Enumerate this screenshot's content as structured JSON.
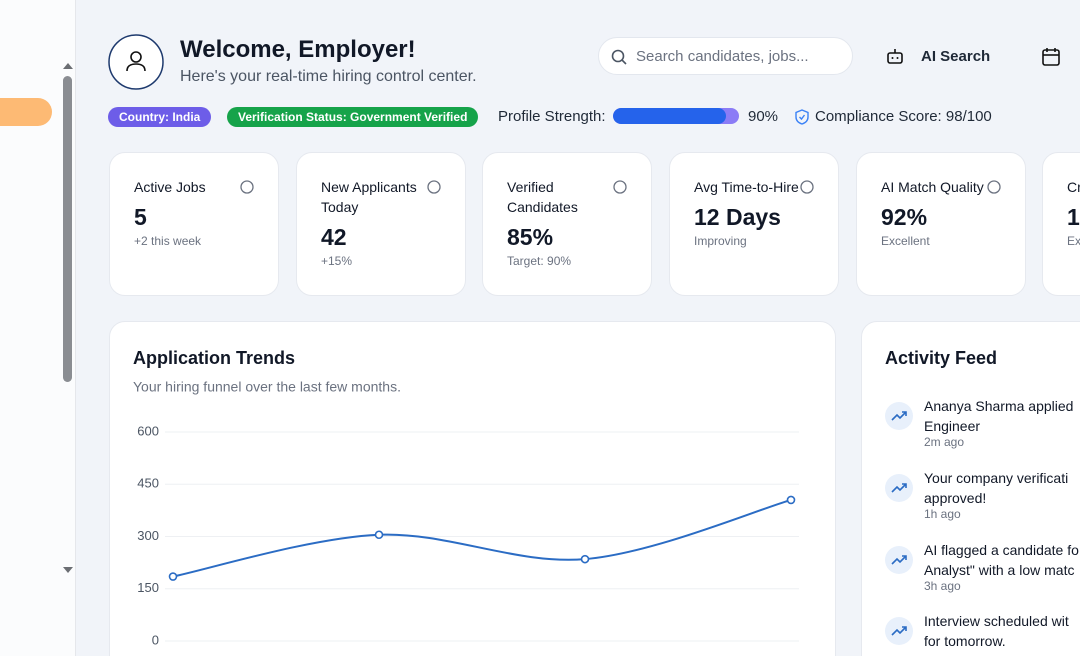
{
  "header": {
    "title": "Welcome, Employer!",
    "subtitle": "Here's your real-time hiring control center.",
    "search_placeholder": "Search candidates, jobs...",
    "ai_search": "AI Search"
  },
  "badges": [
    "Country: India",
    "Verification Status: Government Verified"
  ],
  "profile_strength": {
    "label": "Profile Strength:",
    "value": 90,
    "value_label": "90%"
  },
  "compliance": "Compliance Score: 98/100",
  "stats": [
    {
      "title": "Active Jobs",
      "value": "5",
      "note": "+2 this week"
    },
    {
      "title": "New Applicants Today",
      "value": "42",
      "note": "+15%"
    },
    {
      "title": "Verified Candidates",
      "value": "85%",
      "note": "Target: 90%"
    },
    {
      "title": "Avg Time-to-Hire",
      "value": "12 Days",
      "note": "Improving"
    },
    {
      "title": "AI Match Quality",
      "value": "92%",
      "note": "Excellent"
    },
    {
      "title": "Cr",
      "value": "1,",
      "note": "Ex"
    }
  ],
  "chart_data": {
    "type": "line",
    "title": "Application Trends",
    "subtitle": "Your hiring funnel over the last few months.",
    "categories": [
      null,
      null,
      null,
      null
    ],
    "values": [
      185,
      305,
      235,
      405
    ],
    "color": "#2b6cc4",
    "ylim": [
      0,
      600
    ],
    "yticks": [
      0,
      150,
      300,
      450,
      600
    ],
    "grid": true
  },
  "activity_feed": {
    "title": "Activity Feed",
    "items": [
      {
        "lines": [
          "Ananya Sharma applied",
          "Engineer"
        ],
        "time": "2m ago"
      },
      {
        "lines": [
          "Your company verificati",
          "approved!"
        ],
        "time": "1h ago"
      },
      {
        "lines": [
          "AI flagged a candidate fo",
          "Analyst\" with a low matc"
        ],
        "time": "3h ago"
      },
      {
        "lines": [
          "Interview scheduled wit",
          "for tomorrow."
        ],
        "time": ""
      }
    ]
  }
}
